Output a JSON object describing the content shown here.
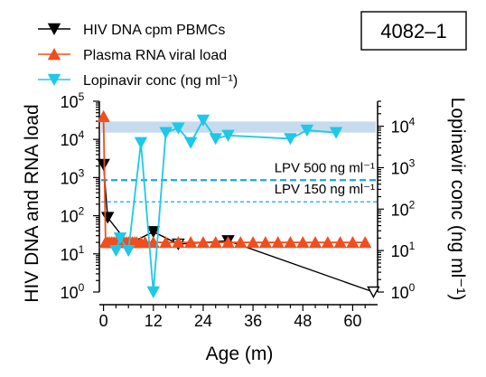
{
  "chart_data": {
    "type": "line",
    "id_label": "4082–1",
    "xlabel": "Age (m)",
    "ylabel_left": "HIV DNA and RNA load",
    "ylabel_right": "Lopinavir conc (ng ml⁻¹)",
    "xlim": [
      -1,
      66
    ],
    "xticks": [
      0,
      12,
      24,
      36,
      48,
      60
    ],
    "ylim_left": [
      1,
      100000
    ],
    "ylim_right": [
      1,
      40000
    ],
    "yscale": "log",
    "left_ticks": [
      {
        "base": "10",
        "exp": "0",
        "value": 1
      },
      {
        "base": "10",
        "exp": "1",
        "value": 10
      },
      {
        "base": "10",
        "exp": "2",
        "value": 100
      },
      {
        "base": "10",
        "exp": "3",
        "value": 1000
      },
      {
        "base": "10",
        "exp": "4",
        "value": 10000
      },
      {
        "base": "10",
        "exp": "5",
        "value": 100000
      }
    ],
    "right_ticks": [
      {
        "base": "10",
        "exp": "0",
        "value": 1
      },
      {
        "base": "10",
        "exp": "1",
        "value": 10
      },
      {
        "base": "10",
        "exp": "2",
        "value": 100
      },
      {
        "base": "10",
        "exp": "3",
        "value": 1000
      },
      {
        "base": "10",
        "exp": "4",
        "value": 10000
      }
    ],
    "shaded_band_right": [
      7000,
      13000
    ],
    "reference_lines": [
      {
        "label": "LPV 500 ng ml⁻¹",
        "value": 500,
        "style": "thick-dashed"
      },
      {
        "label": "LPV 150 ng ml⁻¹",
        "value": 150,
        "style": "thin-dashed"
      }
    ],
    "series": [
      {
        "name": "HIV DNA cpm PBMCs",
        "axis": "left",
        "color": "#000000",
        "marker": "triangle-down",
        "x": [
          0,
          1,
          6,
          12,
          18,
          30,
          65
        ],
        "y": [
          2200,
          90,
          18,
          38,
          18,
          22,
          1
        ],
        "open": [
          false,
          false,
          false,
          false,
          true,
          false,
          true
        ]
      },
      {
        "name": "Plasma RNA viral load",
        "axis": "left",
        "color": "#f04e1f",
        "marker": "triangle-up",
        "x": [
          0,
          0.5,
          1,
          1.5,
          2,
          2.5,
          3,
          3.5,
          4,
          4.5,
          5,
          5.5,
          6,
          6.5,
          7,
          7.5,
          8,
          9,
          10,
          12,
          15,
          18,
          21,
          24,
          27,
          30,
          33,
          36,
          39,
          42,
          45,
          48,
          51,
          54,
          57,
          60,
          63
        ],
        "y": [
          40000,
          20,
          20,
          20,
          20,
          20,
          20,
          20,
          20,
          20,
          20,
          20,
          20,
          20,
          20,
          20,
          20,
          20,
          20,
          20,
          20,
          20,
          20,
          20,
          20,
          20,
          20,
          20,
          20,
          20,
          20,
          20,
          20,
          20,
          20,
          20,
          20
        ]
      },
      {
        "name": "Lopinavir conc (ng ml⁻¹)",
        "axis": "right",
        "color": "#1ec8e8",
        "marker": "triangle-down",
        "x": [
          3,
          4,
          6,
          9,
          12,
          15,
          18,
          21,
          24,
          27,
          30,
          45,
          49,
          56
        ],
        "y": [
          10,
          20,
          10,
          4000,
          1,
          7000,
          9000,
          4000,
          14000,
          5000,
          6000,
          5000,
          8000,
          7000
        ]
      }
    ],
    "legend_placement": "top-left"
  }
}
